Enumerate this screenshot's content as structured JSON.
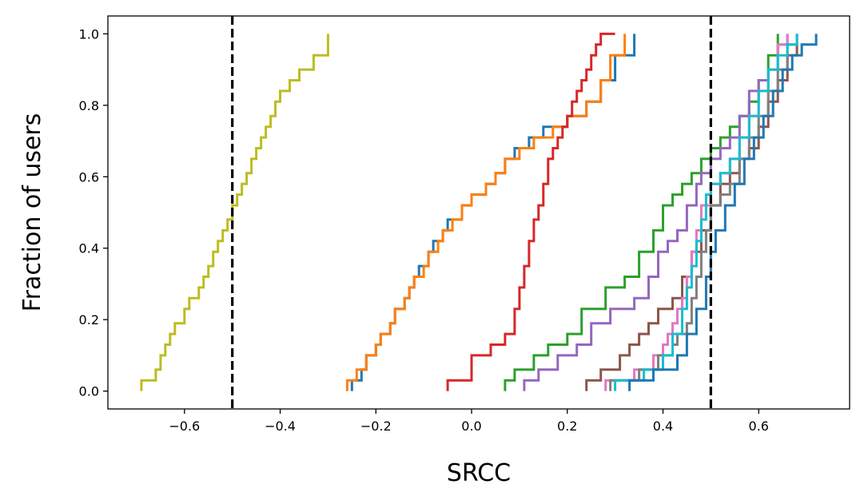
{
  "chart_data": {
    "type": "line",
    "title": "",
    "xlabel": "SRCC",
    "ylabel": "Fraction of users",
    "xlim": [
      -0.76,
      0.79
    ],
    "ylim": [
      -0.05,
      1.05
    ],
    "xticks": [
      -0.6,
      -0.4,
      -0.2,
      0.0,
      0.2,
      0.4,
      0.6
    ],
    "xtick_labels": [
      "−0.6",
      "−0.4",
      "−0.2",
      "0.0",
      "0.2",
      "0.4",
      "0.6"
    ],
    "yticks": [
      0.0,
      0.2,
      0.4,
      0.6,
      0.8,
      1.0
    ],
    "ytick_labels": [
      "0.0",
      "0.2",
      "0.4",
      "0.6",
      "0.8",
      "1.0"
    ],
    "grid": false,
    "legend": "none",
    "reference_lines": [
      {
        "x": -0.5,
        "style": "dashed",
        "color": "#000000"
      },
      {
        "x": 0.5,
        "style": "dashed",
        "color": "#000000"
      }
    ],
    "series": [
      {
        "color": "#bcbd22",
        "x": [
          -0.69,
          -0.66,
          -0.65,
          -0.64,
          -0.63,
          -0.62,
          -0.6,
          -0.59,
          -0.57,
          -0.56,
          -0.55,
          -0.54,
          -0.53,
          -0.52,
          -0.51,
          -0.5,
          -0.49,
          -0.48,
          -0.47,
          -0.46,
          -0.45,
          -0.44,
          -0.43,
          -0.42,
          -0.41,
          -0.4,
          -0.38,
          -0.36,
          -0.33,
          -0.3
        ],
        "y": [
          0.03,
          0.06,
          0.1,
          0.13,
          0.16,
          0.19,
          0.23,
          0.26,
          0.29,
          0.32,
          0.35,
          0.39,
          0.42,
          0.45,
          0.48,
          0.52,
          0.55,
          0.58,
          0.61,
          0.65,
          0.68,
          0.71,
          0.74,
          0.77,
          0.81,
          0.84,
          0.87,
          0.9,
          0.94,
          1.0
        ]
      },
      {
        "color": "#1f77b4",
        "x": [
          -0.25,
          -0.23,
          -0.22,
          -0.2,
          -0.19,
          -0.17,
          -0.16,
          -0.14,
          -0.13,
          -0.12,
          -0.11,
          -0.09,
          -0.08,
          -0.06,
          -0.05,
          -0.02,
          0.0,
          0.03,
          0.05,
          0.07,
          0.09,
          0.12,
          0.15,
          0.2,
          0.24,
          0.27,
          0.3,
          0.34
        ],
        "y": [
          0.03,
          0.06,
          0.1,
          0.13,
          0.16,
          0.19,
          0.23,
          0.26,
          0.29,
          0.32,
          0.35,
          0.39,
          0.42,
          0.45,
          0.48,
          0.52,
          0.55,
          0.58,
          0.61,
          0.65,
          0.68,
          0.71,
          0.74,
          0.77,
          0.81,
          0.87,
          0.94,
          1.0
        ]
      },
      {
        "color": "#ff7f0e",
        "x": [
          -0.26,
          -0.24,
          -0.22,
          -0.2,
          -0.19,
          -0.17,
          -0.16,
          -0.14,
          -0.13,
          -0.12,
          -0.1,
          -0.09,
          -0.07,
          -0.06,
          -0.04,
          -0.02,
          0.0,
          0.03,
          0.05,
          0.07,
          0.1,
          0.13,
          0.17,
          0.2,
          0.24,
          0.27,
          0.29,
          0.32
        ],
        "y": [
          0.03,
          0.06,
          0.1,
          0.13,
          0.16,
          0.19,
          0.23,
          0.26,
          0.29,
          0.32,
          0.35,
          0.39,
          0.42,
          0.45,
          0.48,
          0.52,
          0.55,
          0.58,
          0.61,
          0.65,
          0.68,
          0.71,
          0.74,
          0.77,
          0.81,
          0.87,
          0.94,
          1.0
        ]
      },
      {
        "color": "#d62728",
        "x": [
          -0.05,
          0.0,
          0.04,
          0.07,
          0.09,
          0.1,
          0.11,
          0.12,
          0.13,
          0.14,
          0.15,
          0.16,
          0.17,
          0.18,
          0.19,
          0.2,
          0.21,
          0.22,
          0.23,
          0.24,
          0.25,
          0.26,
          0.27,
          0.28,
          0.3
        ],
        "y": [
          0.03,
          0.1,
          0.13,
          0.16,
          0.23,
          0.29,
          0.35,
          0.42,
          0.48,
          0.52,
          0.58,
          0.65,
          0.68,
          0.71,
          0.74,
          0.77,
          0.81,
          0.84,
          0.87,
          0.9,
          0.94,
          0.97,
          1.0,
          1.0,
          1.0
        ]
      },
      {
        "color": "#2ca02c",
        "x": [
          0.07,
          0.09,
          0.13,
          0.16,
          0.2,
          0.23,
          0.28,
          0.32,
          0.35,
          0.38,
          0.4,
          0.42,
          0.44,
          0.46,
          0.48,
          0.5,
          0.52,
          0.54,
          0.56,
          0.58,
          0.6,
          0.62,
          0.64
        ],
        "y": [
          0.03,
          0.06,
          0.1,
          0.13,
          0.16,
          0.23,
          0.29,
          0.32,
          0.39,
          0.45,
          0.52,
          0.55,
          0.58,
          0.61,
          0.65,
          0.68,
          0.71,
          0.74,
          0.77,
          0.81,
          0.87,
          0.94,
          1.0
        ]
      },
      {
        "color": "#9467bd",
        "x": [
          0.11,
          0.14,
          0.18,
          0.22,
          0.25,
          0.29,
          0.34,
          0.37,
          0.39,
          0.41,
          0.43,
          0.45,
          0.47,
          0.48,
          0.5,
          0.52,
          0.54,
          0.56,
          0.58,
          0.6,
          0.62,
          0.64,
          0.66
        ],
        "y": [
          0.03,
          0.06,
          0.1,
          0.13,
          0.19,
          0.23,
          0.26,
          0.32,
          0.39,
          0.42,
          0.45,
          0.52,
          0.58,
          0.61,
          0.65,
          0.68,
          0.71,
          0.77,
          0.84,
          0.87,
          0.9,
          0.97,
          1.0
        ]
      },
      {
        "color": "#8c564b",
        "x": [
          0.24,
          0.27,
          0.31,
          0.33,
          0.35,
          0.37,
          0.39,
          0.42,
          0.44,
          0.46,
          0.48,
          0.5,
          0.52,
          0.54,
          0.56,
          0.58,
          0.6,
          0.62,
          0.64,
          0.66,
          0.68
        ],
        "y": [
          0.03,
          0.06,
          0.1,
          0.13,
          0.16,
          0.19,
          0.23,
          0.26,
          0.32,
          0.39,
          0.45,
          0.52,
          0.58,
          0.61,
          0.65,
          0.68,
          0.74,
          0.81,
          0.87,
          0.94,
          1.0
        ]
      },
      {
        "color": "#e377c2",
        "x": [
          0.28,
          0.34,
          0.38,
          0.4,
          0.41,
          0.42,
          0.43,
          0.44,
          0.45,
          0.46,
          0.47,
          0.48,
          0.5,
          0.52,
          0.54,
          0.56,
          0.58,
          0.6,
          0.62,
          0.64,
          0.66
        ],
        "y": [
          0.03,
          0.06,
          0.1,
          0.13,
          0.16,
          0.19,
          0.23,
          0.26,
          0.32,
          0.39,
          0.45,
          0.52,
          0.58,
          0.61,
          0.65,
          0.71,
          0.77,
          0.84,
          0.9,
          0.97,
          1.0
        ]
      },
      {
        "color": "#7f7f7f",
        "x": [
          0.29,
          0.35,
          0.39,
          0.42,
          0.43,
          0.45,
          0.46,
          0.47,
          0.48,
          0.49,
          0.5,
          0.52,
          0.54,
          0.56,
          0.58,
          0.6,
          0.62,
          0.64,
          0.66,
          0.68
        ],
        "y": [
          0.03,
          0.06,
          0.1,
          0.13,
          0.16,
          0.19,
          0.26,
          0.32,
          0.39,
          0.45,
          0.52,
          0.55,
          0.58,
          0.65,
          0.71,
          0.77,
          0.84,
          0.9,
          0.97,
          1.0
        ]
      },
      {
        "color": "#17becf",
        "x": [
          0.3,
          0.36,
          0.4,
          0.42,
          0.44,
          0.45,
          0.46,
          0.47,
          0.48,
          0.49,
          0.5,
          0.52,
          0.54,
          0.56,
          0.58,
          0.6,
          0.62,
          0.64,
          0.66,
          0.68
        ],
        "y": [
          0.03,
          0.06,
          0.1,
          0.16,
          0.23,
          0.29,
          0.35,
          0.42,
          0.48,
          0.55,
          0.58,
          0.61,
          0.65,
          0.71,
          0.77,
          0.84,
          0.9,
          0.94,
          0.97,
          1.0
        ]
      },
      {
        "color": "#1f77b4",
        "x": [
          0.33,
          0.38,
          0.43,
          0.45,
          0.47,
          0.49,
          0.5,
          0.51,
          0.53,
          0.55,
          0.57,
          0.59,
          0.61,
          0.63,
          0.65,
          0.67,
          0.69,
          0.72
        ],
        "y": [
          0.03,
          0.06,
          0.1,
          0.16,
          0.23,
          0.32,
          0.39,
          0.45,
          0.52,
          0.58,
          0.65,
          0.71,
          0.77,
          0.84,
          0.9,
          0.94,
          0.97,
          1.0
        ]
      }
    ]
  }
}
